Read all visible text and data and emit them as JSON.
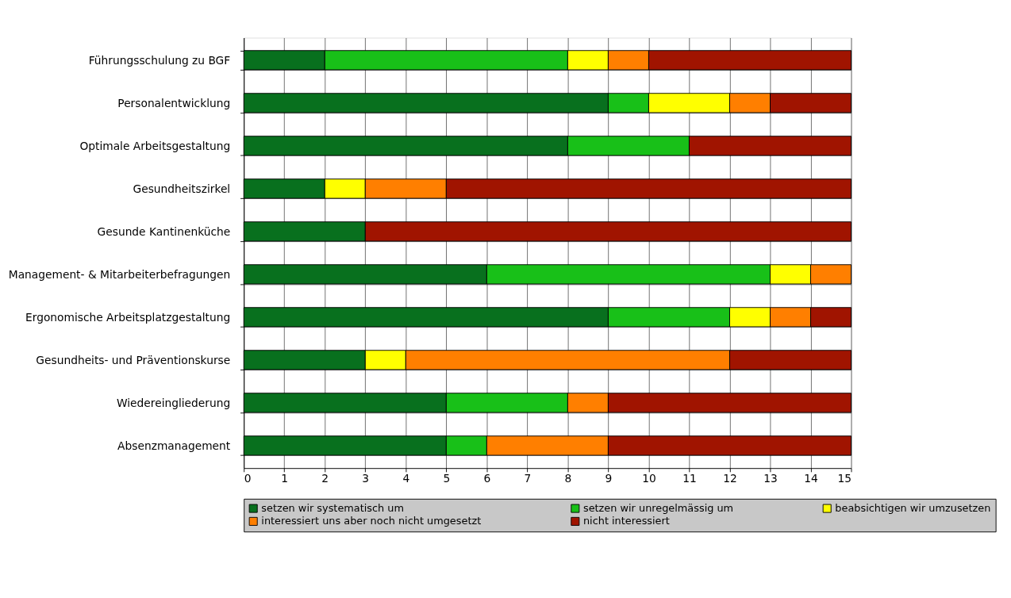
{
  "chart_data": {
    "type": "bar",
    "orientation": "horizontal",
    "stacked": true,
    "categories": [
      "Führungsschulung zu BGF",
      "Personalentwicklung",
      "Optimale Arbeitsgestaltung",
      "Gesundheitszirkel",
      "Gesunde Kantinenküche",
      "Management- & Mitarbeiterbefragungen",
      "Ergonomische Arbeitsplatzgestaltung",
      "Gesundheits- und Präventionskurse",
      "Wiedereingliederung",
      "Absenzmanagement"
    ],
    "series": [
      {
        "name": "setzen wir systematisch um",
        "color": "#08701e",
        "values": [
          2,
          9,
          8,
          2,
          3,
          6,
          9,
          3,
          5,
          5
        ]
      },
      {
        "name": "setzen wir unregelmässig um",
        "color": "#18c018",
        "values": [
          6,
          1,
          3,
          null,
          null,
          7,
          3,
          null,
          3,
          1
        ]
      },
      {
        "name": "beabsichtigen wir umzusetzen",
        "color": "#ffff00",
        "values": [
          1,
          2,
          null,
          1,
          null,
          1,
          1,
          1,
          null,
          null
        ]
      },
      {
        "name": "interessiert uns aber noch nicht umgesetzt",
        "color": "#ff7f00",
        "values": [
          1,
          1,
          null,
          2,
          null,
          1,
          1,
          8,
          1,
          3
        ]
      },
      {
        "name": "nicht interessiert",
        "color": "#a01400",
        "values": [
          5,
          2,
          4,
          10,
          12,
          null,
          1,
          3,
          6,
          6
        ]
      }
    ],
    "xlim": [
      0,
      15
    ],
    "xticks": [
      0,
      1,
      2,
      3,
      4,
      5,
      6,
      7,
      8,
      9,
      10,
      11,
      12,
      13,
      14,
      15
    ],
    "grid": true,
    "legend": "bottom"
  }
}
